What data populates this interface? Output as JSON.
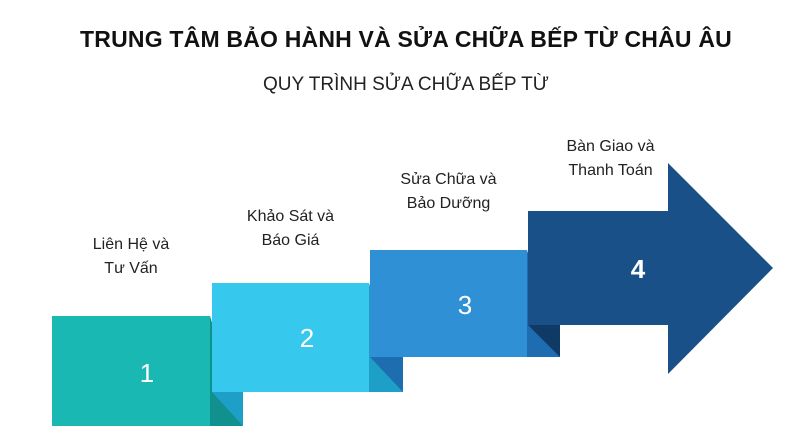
{
  "header": {
    "title": "TRUNG TÂM BẢO HÀNH VÀ SỬA CHỮA BẾP TỪ CHÂU ÂU",
    "subtitle": "QUY TRÌNH SỬA CHỮA BẾP TỪ"
  },
  "steps": [
    {
      "number": "1",
      "label": "Liên Hệ và\nTư Vấn",
      "color": "#19b8b3",
      "shadow": "#10918d"
    },
    {
      "number": "2",
      "label": "Khảo Sát và\nBáo Giá",
      "color": "#37c8ee",
      "shadow": "#1d9fc7"
    },
    {
      "number": "3",
      "label": "Sửa Chữa và\nBảo Dưỡng",
      "color": "#2f90d6",
      "shadow": "#1e6db1"
    },
    {
      "number": "4",
      "label": "Bàn Giao và\nThanh Toán",
      "color": "#1a5088",
      "shadow": "#0f3a66"
    }
  ]
}
